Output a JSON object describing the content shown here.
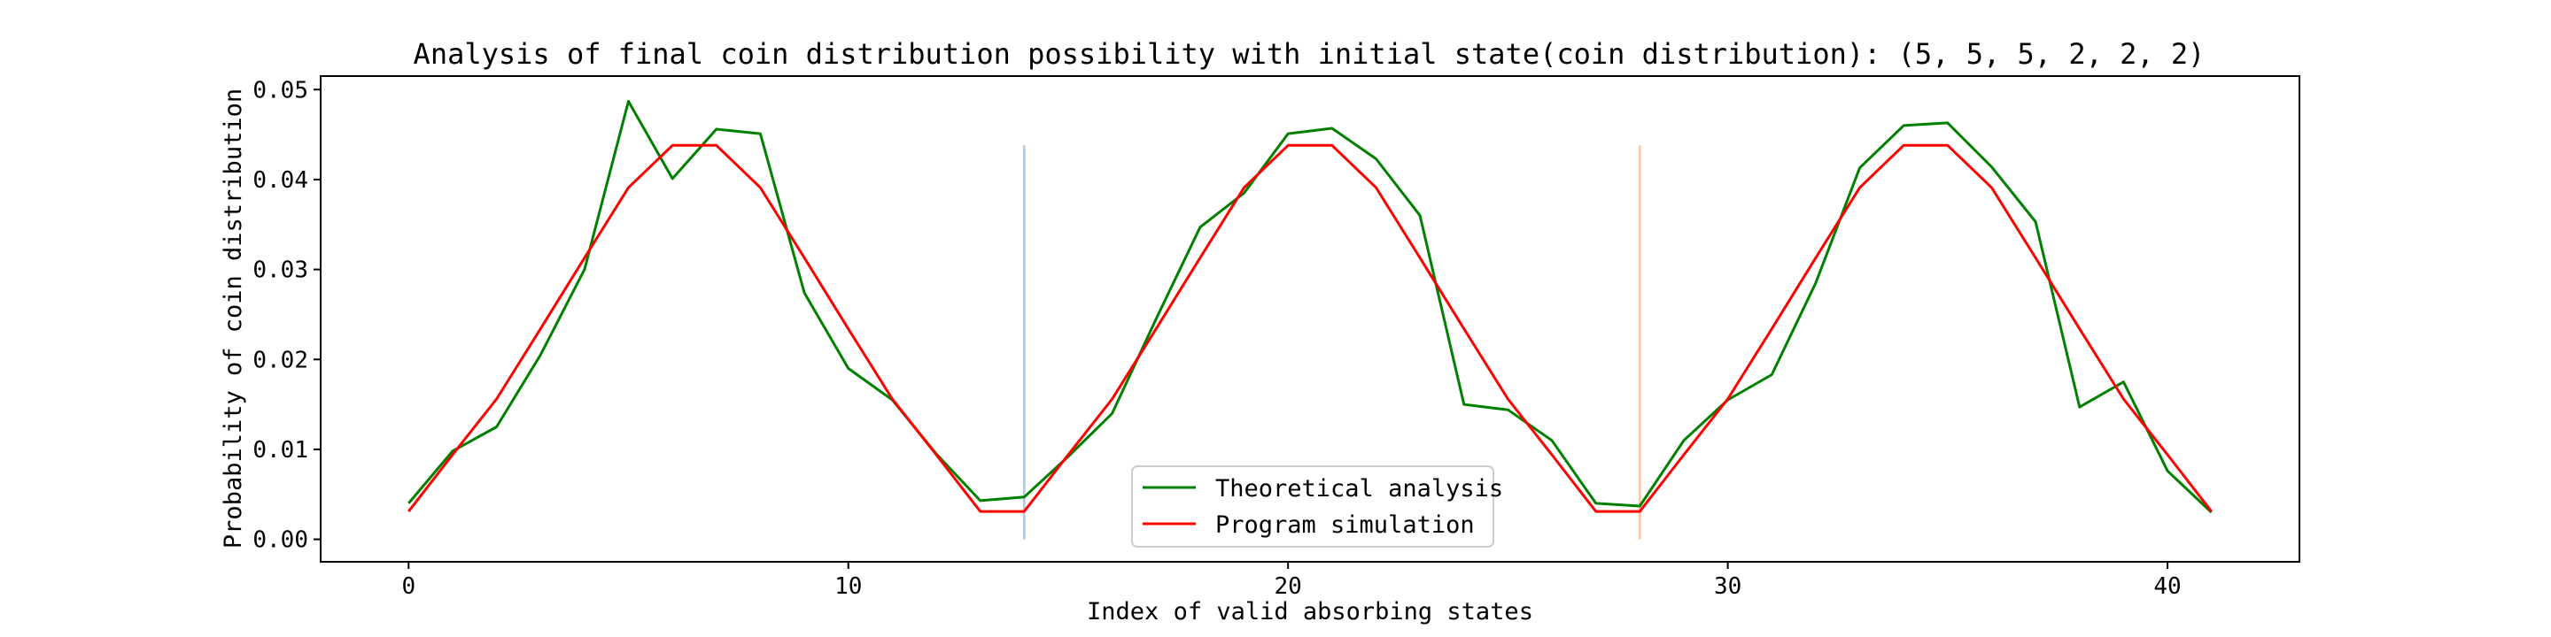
{
  "chart_data": {
    "type": "line",
    "title": "Analysis of final coin distribution possibility with initial state(coin distribution): (5, 5, 5, 2, 2, 2)",
    "xlabel": "Index of valid absorbing states",
    "ylabel": "Probability of coin distribution",
    "xlim": [
      -2,
      43
    ],
    "ylim": [
      -0.0025,
      0.0515
    ],
    "xticks": [
      0,
      10,
      20,
      30,
      40
    ],
    "yticks": [
      0.0,
      0.01,
      0.02,
      0.03,
      0.04,
      0.05
    ],
    "ytick_labels": [
      "0.00",
      "0.01",
      "0.02",
      "0.03",
      "0.04",
      "0.05"
    ],
    "grid": false,
    "legend_position": "bottom-center",
    "series": [
      {
        "name": "Theoretical analysis",
        "color": "#008000",
        "x": [
          0,
          1,
          2,
          3,
          4,
          5,
          6,
          7,
          8,
          9,
          10,
          11,
          12,
          13,
          14,
          15,
          16,
          17,
          18,
          19,
          20,
          21,
          22,
          23,
          24,
          25,
          26,
          27,
          28,
          29,
          30,
          31,
          32,
          33,
          34,
          35,
          36,
          37,
          38,
          39,
          40,
          41
        ],
        "values": [
          0.004,
          0.0098,
          0.0125,
          0.0205,
          0.03,
          0.0487,
          0.0401,
          0.0456,
          0.0451,
          0.0274,
          0.019,
          0.0155,
          0.0095,
          0.0043,
          0.0047,
          0.0092,
          0.014,
          0.0245,
          0.0347,
          0.0385,
          0.0451,
          0.0457,
          0.0423,
          0.036,
          0.015,
          0.0144,
          0.011,
          0.004,
          0.0037,
          0.011,
          0.0155,
          0.0183,
          0.0285,
          0.0413,
          0.046,
          0.0463,
          0.0414,
          0.0353,
          0.0147,
          0.0175,
          0.0076,
          0.003
        ]
      },
      {
        "name": "Program simulation",
        "color": "#ff0000",
        "x": [
          0,
          1,
          2,
          3,
          4,
          5,
          6,
          7,
          8,
          9,
          10,
          11,
          12,
          13,
          14,
          15,
          16,
          17,
          18,
          19,
          20,
          21,
          22,
          23,
          24,
          25,
          26,
          27,
          28,
          29,
          30,
          31,
          32,
          33,
          34,
          35,
          36,
          37,
          38,
          39,
          40,
          41
        ],
        "values": [
          0.0031,
          0.0094,
          0.0156,
          0.0234,
          0.0313,
          0.0391,
          0.0438,
          0.0438,
          0.0391,
          0.0313,
          0.0234,
          0.0156,
          0.0094,
          0.0031,
          0.0031,
          0.0094,
          0.0156,
          0.0234,
          0.0313,
          0.0391,
          0.0438,
          0.0438,
          0.0391,
          0.0313,
          0.0234,
          0.0156,
          0.0094,
          0.0031,
          0.0031,
          0.0094,
          0.0156,
          0.0234,
          0.0313,
          0.0391,
          0.0438,
          0.0438,
          0.0391,
          0.0313,
          0.0234,
          0.0156,
          0.0094,
          0.0031
        ]
      }
    ],
    "vlines": [
      {
        "x": 14,
        "ymin": 0.0,
        "ymax": 0.0438,
        "color": "#a6c8e6"
      },
      {
        "x": 28,
        "ymin": 0.0,
        "ymax": 0.0438,
        "color": "#ffc49a"
      }
    ]
  }
}
